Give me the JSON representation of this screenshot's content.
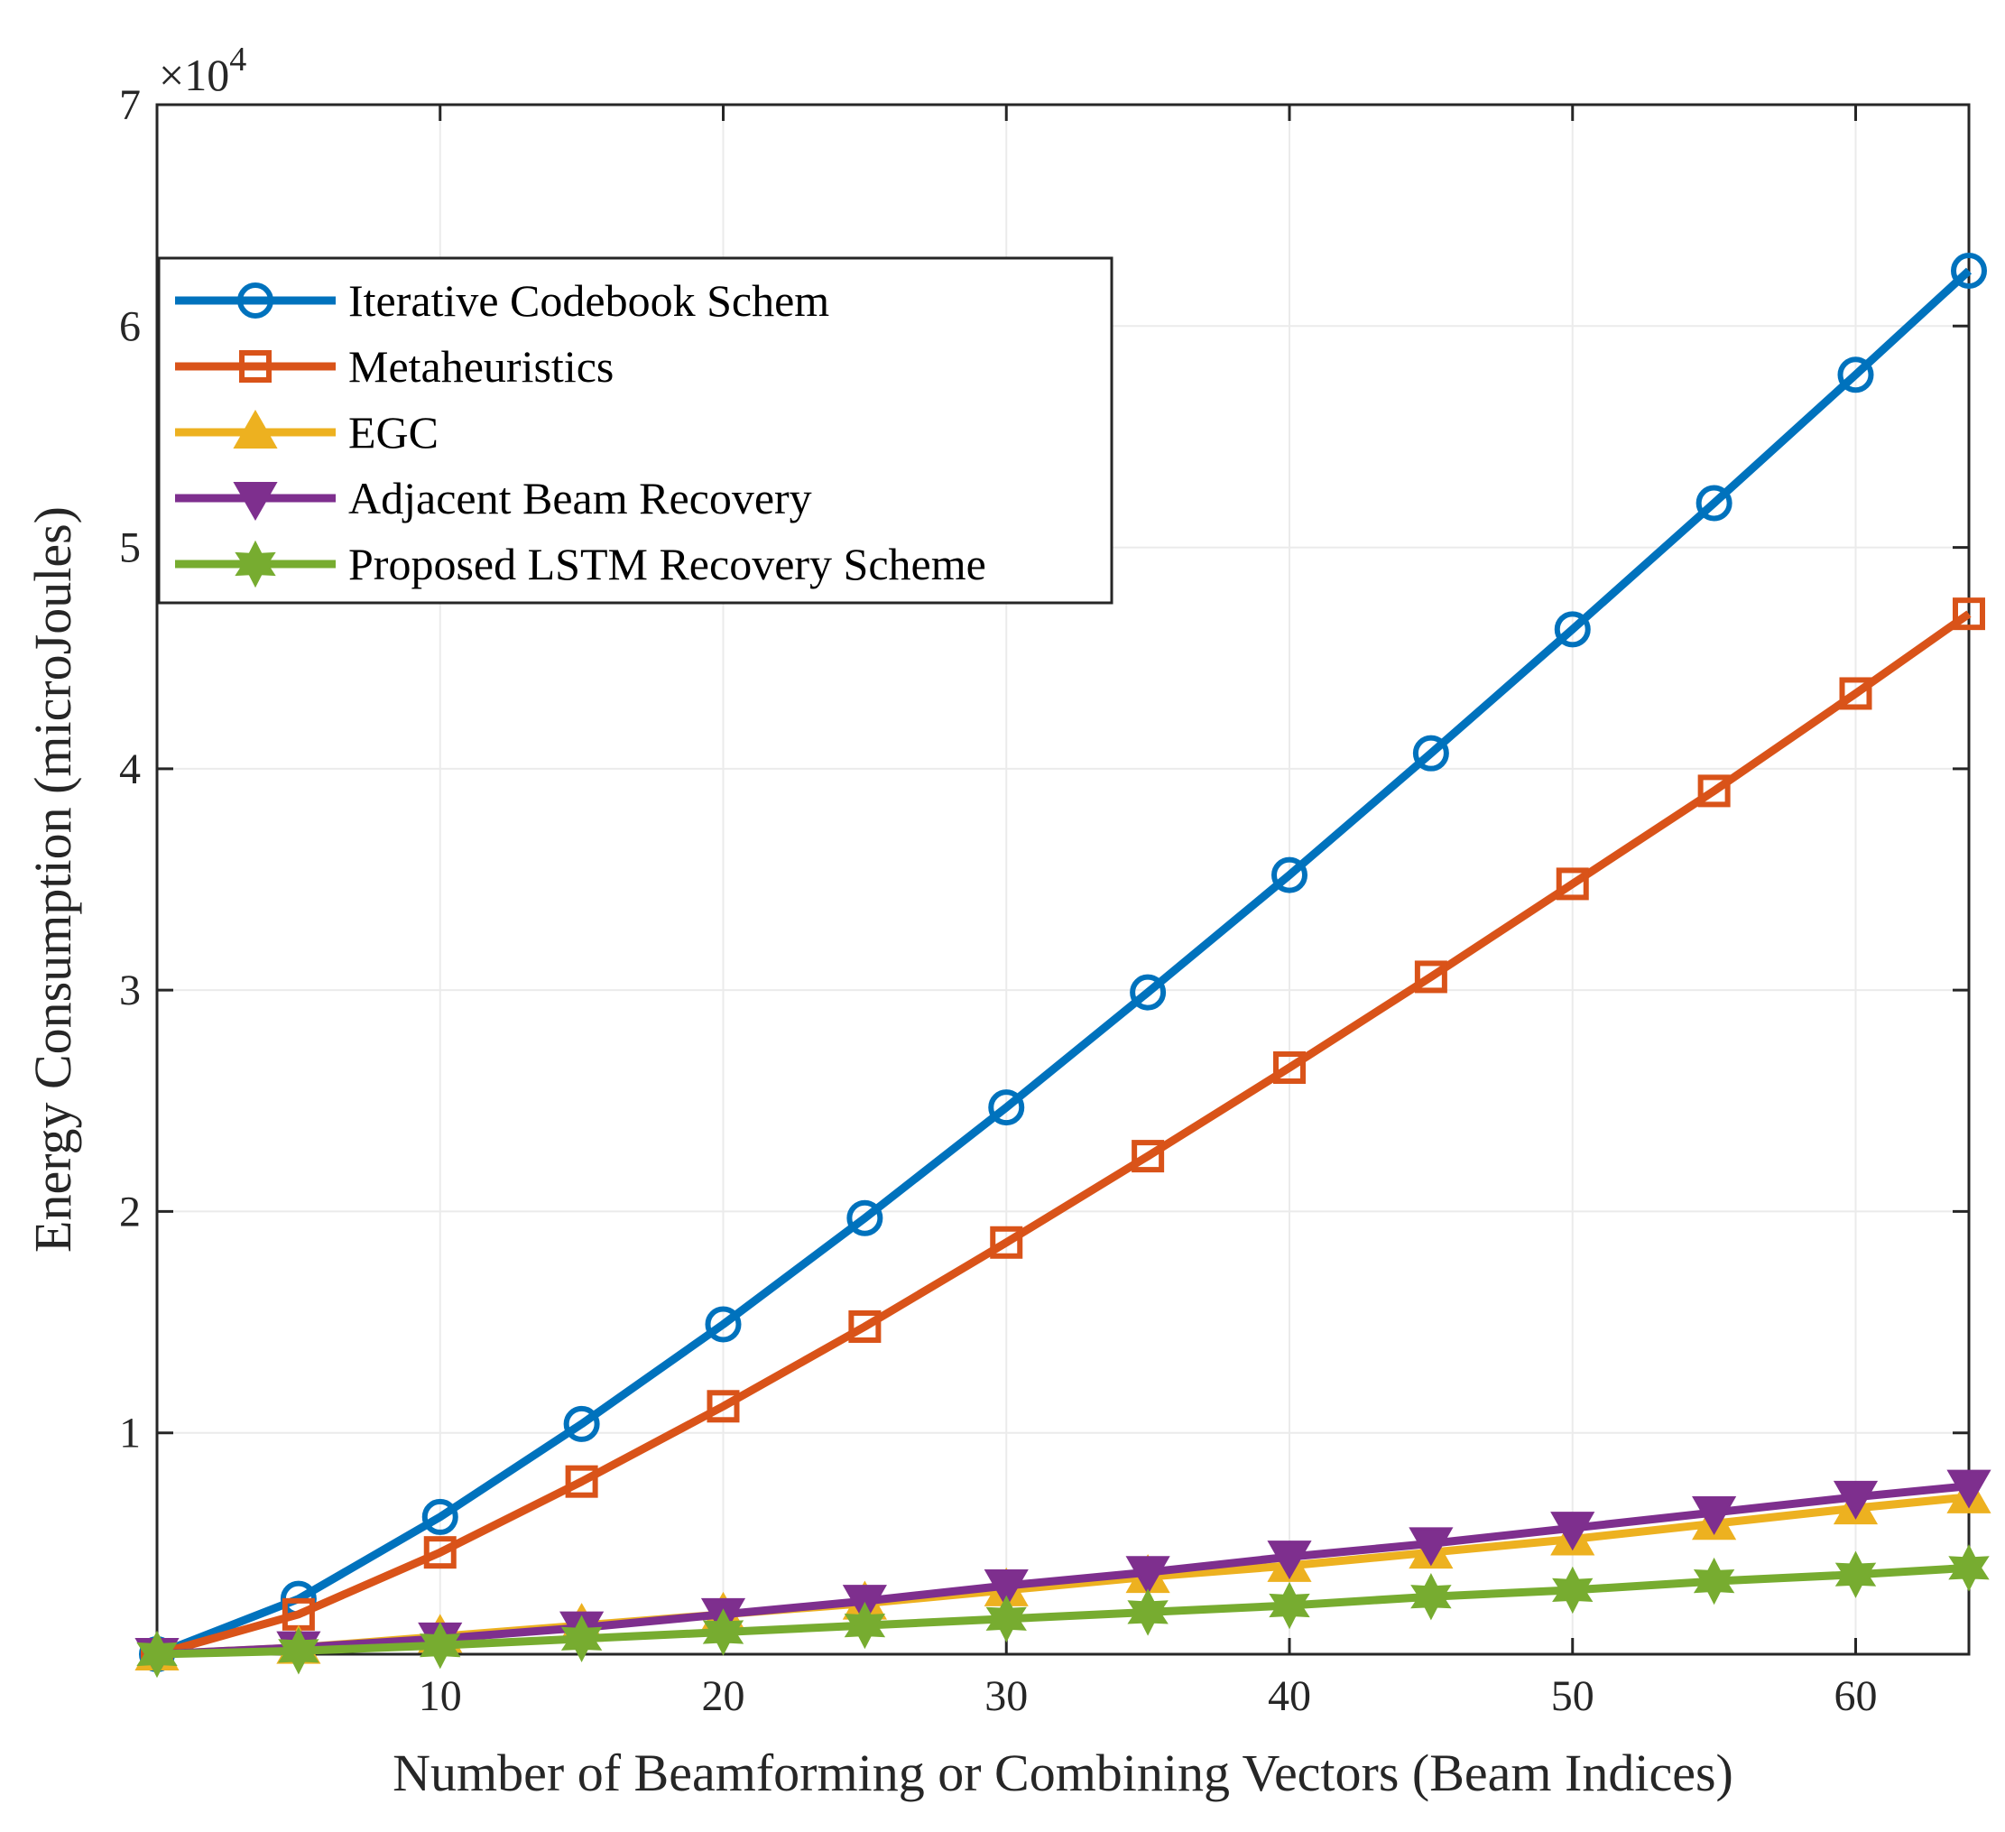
{
  "chart_data": {
    "type": "line",
    "title": "",
    "xlabel": "Number of Beamforming or Combining Vectors (Beam Indices)",
    "ylabel": "Energy Consumption (microJoules)",
    "xlim": [
      0,
      64
    ],
    "ylim": [
      0,
      70000
    ],
    "xticks": [
      10,
      20,
      30,
      40,
      50,
      60
    ],
    "yticks": [
      10000,
      20000,
      30000,
      40000,
      50000,
      60000,
      70000
    ],
    "ytick_labels": [
      "1",
      "2",
      "3",
      "4",
      "5",
      "6",
      "7"
    ],
    "y_exponent_label": "×10",
    "y_exponent_power": "4",
    "grid": true,
    "legend_position": "upper-left",
    "x": [
      0,
      5,
      10,
      15,
      20,
      25,
      30,
      35,
      40,
      45,
      50,
      55,
      60,
      64
    ],
    "series": [
      {
        "name": "Iterative Codebook Schem",
        "color": "#0072BD",
        "marker": "circle",
        "values": [
          0,
          2500,
          6200,
          10400,
          14900,
          19700,
          24700,
          29900,
          35200,
          40700,
          46300,
          52000,
          57800,
          62500
        ]
      },
      {
        "name": "Metaheuristics",
        "color": "#D95319",
        "marker": "square",
        "values": [
          0,
          1800,
          4600,
          7800,
          11200,
          14800,
          18600,
          22500,
          26500,
          30600,
          34800,
          39000,
          43400,
          47000
        ]
      },
      {
        "name": "EGC",
        "color": "#EDB120",
        "marker": "triangle-up",
        "values": [
          0,
          300,
          800,
          1300,
          1800,
          2300,
          2900,
          3500,
          4000,
          4600,
          5200,
          5900,
          6600,
          7100
        ]
      },
      {
        "name": "Adjacent Beam Recovery",
        "color": "#7E2F8E",
        "marker": "triangle-down",
        "values": [
          0,
          300,
          700,
          1200,
          1800,
          2400,
          3100,
          3700,
          4400,
          5000,
          5700,
          6400,
          7100,
          7600
        ]
      },
      {
        "name": "Proposed LSTM Recovery Scheme",
        "color": "#77AC30",
        "marker": "hexagram",
        "values": [
          0,
          150,
          400,
          700,
          1000,
          1300,
          1600,
          1900,
          2200,
          2600,
          2900,
          3300,
          3600,
          3900
        ]
      }
    ]
  }
}
